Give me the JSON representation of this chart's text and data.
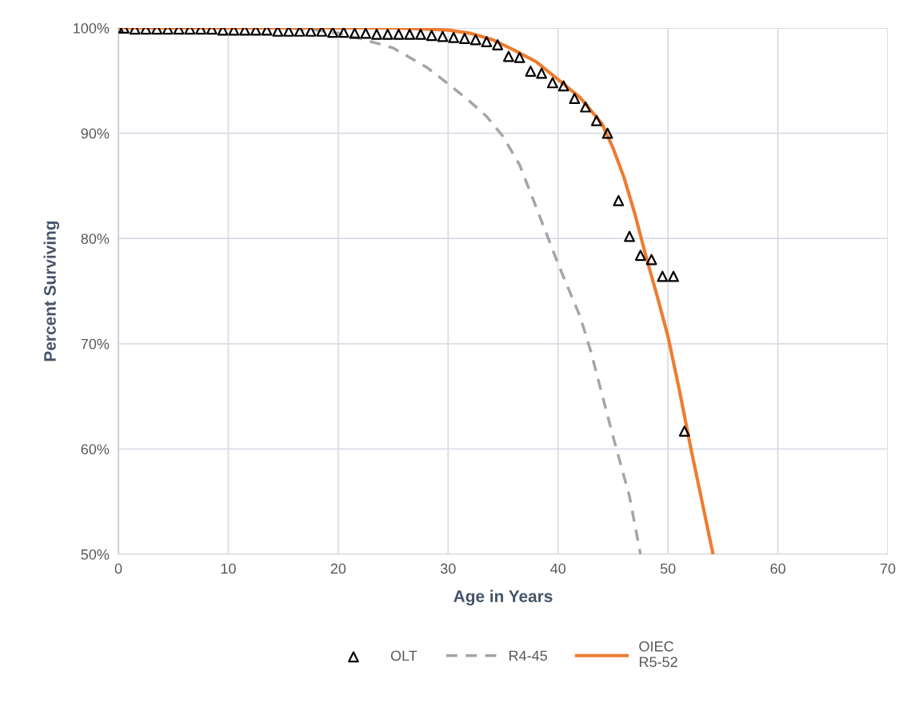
{
  "chart_data": {
    "type": "line",
    "xlabel": "Age in Years",
    "ylabel": "Percent Surviving",
    "xlim": [
      0,
      70
    ],
    "xticks": [
      0,
      10,
      20,
      30,
      40,
      50,
      60,
      70
    ],
    "ylim": [
      50,
      100
    ],
    "yticks": [
      {
        "value": 50,
        "label": "50%"
      },
      {
        "value": 60,
        "label": "60%"
      },
      {
        "value": 70,
        "label": "70%"
      },
      {
        "value": 80,
        "label": "80%"
      },
      {
        "value": 90,
        "label": "90%"
      },
      {
        "value": 100,
        "label": "100%"
      }
    ],
    "grid": true,
    "legend": "bottom",
    "series": [
      {
        "name": "OLT",
        "type": "scatter",
        "marker": "triangle",
        "color": "#000000",
        "x": [
          0,
          0.5,
          1.5,
          2.5,
          3.5,
          4.5,
          5.5,
          6.5,
          7.5,
          8.5,
          9.5,
          10.5,
          11.5,
          12.5,
          13.5,
          14.5,
          15.5,
          16.5,
          17.5,
          18.5,
          19.5,
          20.5,
          21.5,
          22.5,
          23.5,
          24.5,
          25.5,
          26.5,
          27.5,
          28.5,
          29.5,
          30.5,
          31.5,
          32.5,
          33.5,
          34.5,
          35.5,
          36.5,
          37.5,
          38.5,
          39.5,
          40.5,
          41.5,
          42.5,
          43.5,
          44.5,
          45.5,
          46.5,
          47.5,
          48.5,
          49.5,
          50.5,
          51.5
        ],
        "values": [
          100,
          100,
          99.9,
          99.9,
          99.9,
          99.9,
          99.9,
          99.9,
          99.9,
          99.9,
          99.8,
          99.8,
          99.8,
          99.8,
          99.8,
          99.7,
          99.7,
          99.7,
          99.7,
          99.7,
          99.6,
          99.6,
          99.5,
          99.5,
          99.4,
          99.4,
          99.4,
          99.4,
          99.4,
          99.3,
          99.2,
          99.1,
          99.0,
          98.9,
          98.7,
          98.4,
          97.3,
          97.2,
          95.9,
          95.7,
          94.8,
          94.5,
          93.3,
          92.5,
          91.2,
          90.0,
          83.6,
          80.2,
          78.4,
          78.0,
          76.4,
          76.4,
          61.7
        ]
      },
      {
        "name": "R4-45",
        "line_style": "dashed",
        "color": "#a5a5a5",
        "x": [
          0,
          10,
          15,
          18,
          20,
          22,
          25,
          28,
          30,
          32,
          33.5,
          35,
          36.5,
          38,
          40,
          42,
          43,
          45,
          46.5,
          47.5
        ],
        "values": [
          100,
          100,
          100,
          99.8,
          99.5,
          99.0,
          98.1,
          96.3,
          94.7,
          93.0,
          91.6,
          89.7,
          87.0,
          83.0,
          77.6,
          72.6,
          69.2,
          61.2,
          55.5,
          50
        ]
      },
      {
        "name": "OIEC\nR5-52",
        "line_style": "solid",
        "color": "#ed7d31",
        "x": [
          0,
          10,
          20,
          25,
          28,
          30,
          32,
          34,
          36,
          38,
          40,
          42,
          44,
          45,
          46,
          47,
          48,
          49,
          50,
          51,
          52,
          53,
          54.1
        ],
        "values": [
          100,
          100,
          100,
          100,
          99.9,
          99.8,
          99.5,
          98.9,
          97.9,
          96.8,
          95.1,
          93.4,
          90.9,
          88.6,
          85.8,
          82.3,
          78.3,
          74.6,
          70.7,
          65.8,
          60.5,
          55.5,
          50
        ]
      }
    ]
  }
}
